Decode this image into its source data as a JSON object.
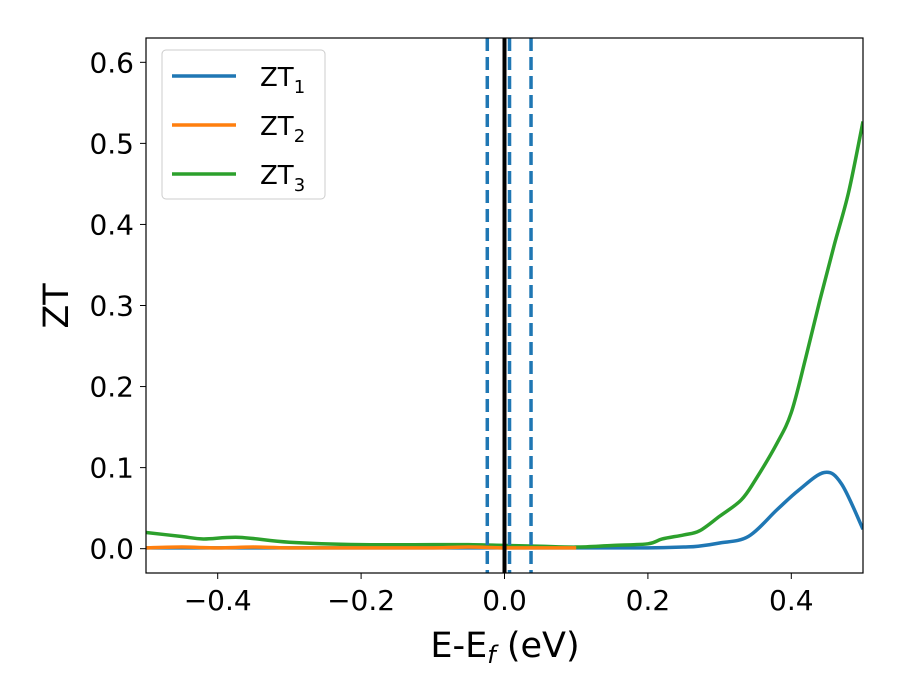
{
  "chart_data": {
    "type": "line",
    "title": "",
    "xlabel": "E-E",
    "xlabel_sub": "f",
    "xlabel_unit": " (eV)",
    "ylabel": "ZT",
    "xlim": [
      -0.5,
      0.5
    ],
    "ylim": [
      -0.03,
      0.63
    ],
    "xticks": [
      -0.4,
      -0.2,
      0.0,
      0.2,
      0.4
    ],
    "xtick_labels": [
      "−0.4",
      "−0.2",
      "0.0",
      "0.2",
      "0.4"
    ],
    "yticks": [
      0.0,
      0.1,
      0.2,
      0.3,
      0.4,
      0.5,
      0.6
    ],
    "ytick_labels": [
      "0.0",
      "0.1",
      "0.2",
      "0.3",
      "0.4",
      "0.5",
      "0.6"
    ],
    "grid": false,
    "legend_position": "top-left",
    "vlines": [
      {
        "x": 0.0,
        "style": "solid",
        "color": "#000000"
      },
      {
        "x": -0.024,
        "style": "dashed",
        "color": "#1f77b4"
      },
      {
        "x": 0.007,
        "style": "dashed",
        "color": "#1f77b4"
      },
      {
        "x": 0.037,
        "style": "dashed",
        "color": "#1f77b4"
      }
    ],
    "series": [
      {
        "name": "ZT",
        "sub": "1",
        "color": "#1f77b4",
        "x": [
          -0.5,
          -0.4,
          -0.3,
          -0.2,
          -0.1,
          0.0,
          0.1,
          0.2,
          0.25,
          0.27,
          0.3,
          0.34,
          0.38,
          0.41,
          0.446,
          0.47,
          0.5
        ],
        "y": [
          0.001,
          0.001,
          0.001,
          0.001,
          0.001,
          0.001,
          0.001,
          0.001,
          0.002,
          0.003,
          0.007,
          0.015,
          0.048,
          0.072,
          0.094,
          0.08,
          0.024
        ]
      },
      {
        "name": "ZT",
        "sub": "2",
        "color": "#ff7f0e",
        "x": [
          -0.5,
          -0.45,
          -0.4,
          -0.35,
          -0.3,
          -0.2,
          -0.1,
          -0.05,
          0.0,
          0.05,
          0.1
        ],
        "y": [
          0.001,
          0.002,
          0.001,
          0.002,
          0.001,
          0.001,
          0.001,
          0.002,
          0.001,
          0.001,
          0.001
        ]
      },
      {
        "name": "ZT",
        "sub": "3",
        "color": "#2ca02c",
        "x": [
          -0.5,
          -0.45,
          -0.42,
          -0.37,
          -0.3,
          -0.2,
          -0.1,
          -0.05,
          0.0,
          0.05,
          0.1,
          0.15,
          0.2,
          0.22,
          0.25,
          0.272,
          0.3,
          0.33,
          0.35,
          0.38,
          0.4,
          0.42,
          0.44,
          0.46,
          0.48,
          0.5
        ],
        "y": [
          0.02,
          0.015,
          0.012,
          0.014,
          0.008,
          0.005,
          0.005,
          0.005,
          0.004,
          0.003,
          0.002,
          0.004,
          0.006,
          0.012,
          0.017,
          0.022,
          0.04,
          0.06,
          0.085,
          0.13,
          0.168,
          0.235,
          0.307,
          0.375,
          0.44,
          0.527
        ]
      }
    ]
  }
}
